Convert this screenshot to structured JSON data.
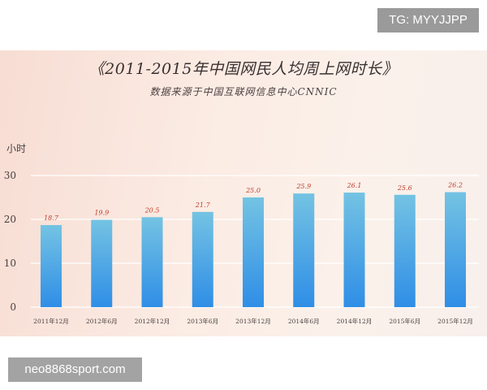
{
  "badge": "TG: MYYJJPP",
  "watermark": "neo8868sport.com",
  "chart_data": {
    "type": "bar",
    "title": "《2011-2015年中国网民人均周上网时长》",
    "subtitle": "数据来源于中国互联网信息中心CNNIC",
    "ylabel": "小时",
    "xlabel": "",
    "categories": [
      "2011年12月",
      "2012年6月",
      "2012年12月",
      "2013年6月",
      "2013年12月",
      "2014年6月",
      "2014年12月",
      "2015年6月",
      "2015年12月"
    ],
    "values": [
      18.7,
      19.9,
      20.5,
      21.7,
      25.0,
      25.9,
      26.1,
      25.6,
      26.2
    ],
    "value_labels": [
      "18.7",
      "19.9",
      "20.5",
      "21.7",
      "25.0",
      "25.9",
      "26.1",
      "25.6",
      "26.2"
    ],
    "ylim": [
      0,
      30
    ],
    "yticks": [
      0,
      10,
      20,
      30
    ],
    "grid": true,
    "legend": "none",
    "colors": {
      "bar_top": "#74c3e3",
      "bar_bottom": "#2f8ee6",
      "value_label": "#c0392b",
      "grid": "#ffffff",
      "axis_text": "#4a3f3f"
    }
  }
}
